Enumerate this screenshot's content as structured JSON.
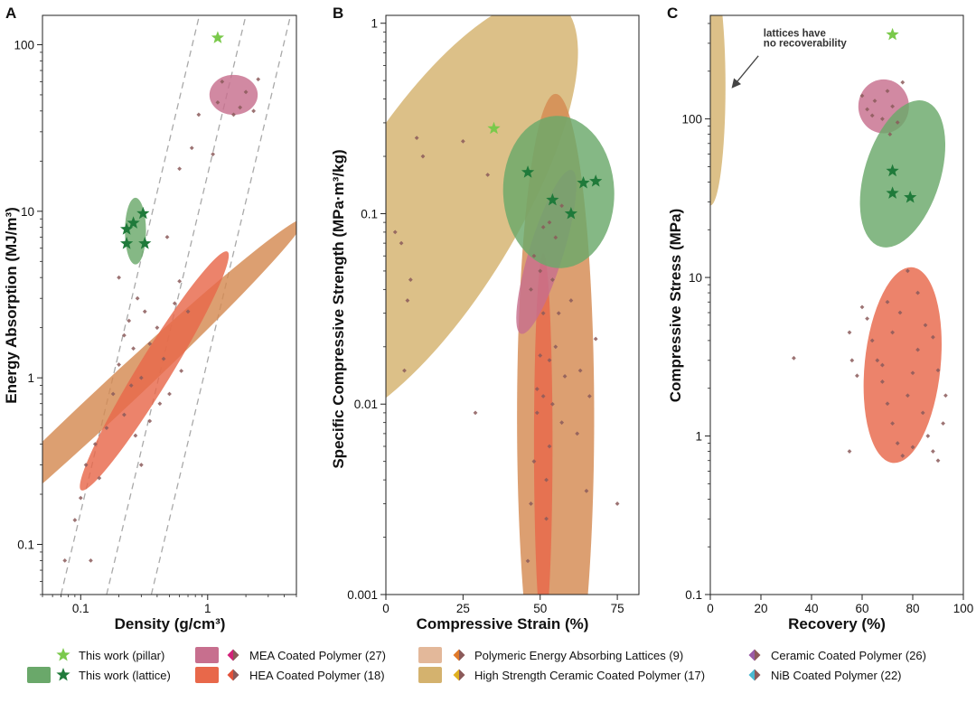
{
  "colors": {
    "pillar_star": "#7ac94b",
    "lattice_star": "#1f7a3a",
    "lattice_region": "#6aa86a",
    "mea_region": "#c76f8e",
    "hea_region": "#e8684a",
    "polymeric_region": "#d48a52",
    "hscc_region": "#d4b26e",
    "point": "#8b5a5a",
    "axis": "#222222",
    "guide": "#a9a9a9"
  },
  "legend": [
    {
      "key": "pillar",
      "label": "This work (pillar)",
      "swatch": "none",
      "marker": "star",
      "marker_color": "#7ac94b"
    },
    {
      "key": "lattice",
      "label": "This work (lattice)",
      "swatch": "#6aa86a",
      "marker": "star",
      "marker_color": "#1f7a3a"
    },
    {
      "key": "mea",
      "label": "MEA Coated Polymer (27)",
      "swatch": "#c76f8e",
      "marker": "diamond",
      "marker_color": "#d3207a",
      "marker_color2": "#8b5a5a"
    },
    {
      "key": "hea",
      "label": "HEA Coated Polymer (18)",
      "swatch": "#e8684a",
      "marker": "diamond",
      "marker_color": "#e2503a",
      "marker_color2": "#8b5a5a"
    },
    {
      "key": "pol",
      "label": "Polymeric Energy Absorbing Lattices (9)",
      "swatch": "#e3b89a",
      "marker": "diamond",
      "marker_color": "#e07a2a",
      "marker_color2": "#8b5a5a"
    },
    {
      "key": "hscc",
      "label": "High Strength Ceramic Coated Polymer (17)",
      "swatch": "#d4b26e",
      "marker": "diamond",
      "marker_color": "#e0b020",
      "marker_color2": "#8b5a5a"
    },
    {
      "key": "cer",
      "label": "Ceramic Coated Polymer (26)",
      "swatch": "none",
      "marker": "diamond",
      "marker_color": "#9a5aa6",
      "marker_color2": "#8b5a5a"
    },
    {
      "key": "nib",
      "label": "NiB Coated Polymer (22)",
      "swatch": "none",
      "marker": "diamond",
      "marker_color": "#4ab8d0",
      "marker_color2": "#8b5a5a"
    }
  ],
  "chart_data": [
    {
      "panel": "A",
      "type": "scatter",
      "xscale": "log",
      "yscale": "log",
      "xlabel": "Density (g/cm³)",
      "ylabel": "Energy Absorption (MJ/m³)",
      "xlim": [
        0.05,
        5
      ],
      "ylim": [
        0.05,
        150
      ],
      "xticks": [
        {
          "v": 0.1,
          "label": "0.1"
        },
        {
          "v": 1,
          "label": "1"
        }
      ],
      "yticks": [
        {
          "v": 0.1,
          "label": "0.1"
        },
        {
          "v": 1,
          "label": "1"
        },
        {
          "v": 10,
          "label": "10"
        },
        {
          "v": 100,
          "label": "100"
        }
      ],
      "guides": [
        {
          "from": [
            0.07,
            0.05
          ],
          "to": [
            0.86,
            150
          ]
        },
        {
          "from": [
            0.16,
            0.05
          ],
          "to": [
            2.0,
            150
          ]
        },
        {
          "from": [
            0.36,
            0.05
          ],
          "to": [
            4.5,
            150
          ]
        }
      ],
      "regions": [
        {
          "series": "Polymeric Energy Absorbing Lattices",
          "color": "#d48a52",
          "center": [
            0.175,
            0.75
          ],
          "rx": 0.13,
          "ry": 1.58,
          "tilt": 0.82
        },
        {
          "series": "HEA Coated Polymer",
          "color": "#e8684a",
          "center": [
            0.38,
            1.1
          ],
          "rx": 0.13,
          "ry": 0.84,
          "tilt": 0.55
        },
        {
          "series": "This work (lattice)",
          "color": "#6aa86a",
          "center": [
            0.27,
            7.6
          ],
          "rx": 0.083,
          "ry": 0.2,
          "tilt": 0
        },
        {
          "series": "MEA Coated Polymer",
          "color": "#c76f8e",
          "center": [
            1.6,
            50
          ],
          "rx": 0.19,
          "ry": 0.12,
          "tilt": 0
        }
      ],
      "points": [
        [
          0.075,
          0.08
        ],
        [
          0.09,
          0.14
        ],
        [
          0.1,
          0.19
        ],
        [
          0.12,
          0.08
        ],
        [
          0.11,
          0.3
        ],
        [
          0.14,
          0.25
        ],
        [
          0.13,
          0.4
        ],
        [
          0.16,
          0.5
        ],
        [
          0.18,
          0.8
        ],
        [
          0.2,
          1.2
        ],
        [
          0.22,
          1.8
        ],
        [
          0.24,
          2.2
        ],
        [
          0.26,
          1.5
        ],
        [
          0.28,
          3.0
        ],
        [
          0.3,
          1.0
        ],
        [
          0.22,
          0.6
        ],
        [
          0.25,
          0.9
        ],
        [
          0.32,
          2.5
        ],
        [
          0.35,
          1.6
        ],
        [
          0.4,
          2.0
        ],
        [
          0.45,
          1.3
        ],
        [
          0.5,
          0.8
        ],
        [
          0.55,
          2.8
        ],
        [
          0.6,
          3.8
        ],
        [
          0.7,
          2.5
        ],
        [
          0.27,
          0.45
        ],
        [
          0.3,
          0.3
        ],
        [
          0.35,
          0.55
        ],
        [
          0.42,
          0.7
        ],
        [
          0.2,
          4.0
        ],
        [
          0.62,
          1.1
        ],
        [
          0.48,
          7.0
        ],
        [
          0.6,
          18
        ],
        [
          0.75,
          24
        ],
        [
          0.85,
          38
        ],
        [
          1.3,
          60
        ],
        [
          1.6,
          38
        ],
        [
          2.0,
          52
        ],
        [
          2.5,
          62
        ],
        [
          1.8,
          42
        ],
        [
          1.1,
          22
        ],
        [
          1.2,
          45
        ],
        [
          2.3,
          40
        ]
      ],
      "pillars": [
        [
          1.2,
          110
        ]
      ],
      "lattices": [
        [
          0.23,
          6.4
        ],
        [
          0.23,
          7.8
        ],
        [
          0.26,
          8.5
        ],
        [
          0.31,
          9.7
        ],
        [
          0.32,
          6.4
        ]
      ]
    },
    {
      "panel": "B",
      "type": "scatter",
      "xscale": "linear",
      "yscale": "log",
      "xlabel": "Compressive Strain (%)",
      "ylabel": "Specific Compressive Strength (MPa·m³/kg)",
      "xlim": [
        0,
        82
      ],
      "ylim": [
        0.001,
        1.1
      ],
      "xticks": [
        {
          "v": 0,
          "label": "0"
        },
        {
          "v": 25,
          "label": "25"
        },
        {
          "v": 50,
          "label": "50"
        },
        {
          "v": 75,
          "label": "75"
        }
      ],
      "yticks": [
        {
          "v": 0.001,
          "label": "0.001"
        },
        {
          "v": 0.01,
          "label": "0.01"
        },
        {
          "v": 0.1,
          "label": "0.1"
        },
        {
          "v": 1,
          "label": "1"
        }
      ],
      "regions": [
        {
          "series": "High Strength Ceramic Coated Polymer",
          "color": "#d4b26e",
          "center": [
            14,
            0.1
          ],
          "rx": 28,
          "ry": 1.3,
          "tilt": 0.55
        },
        {
          "series": "Polymeric Energy Absorbing Lattices",
          "color": "#d48a52",
          "center": [
            55,
            0.0085
          ],
          "rx": 12.5,
          "ry": 1.7,
          "tilt": 0
        },
        {
          "series": "HEA Coated Polymer",
          "color": "#e8684a",
          "center": [
            51,
            0.0062
          ],
          "rx": 3.0,
          "ry": 1.0,
          "tilt": 0
        },
        {
          "series": "MEA Coated Polymer",
          "color": "#c76f8e",
          "center": [
            52,
            0.063
          ],
          "rx": 5.5,
          "ry": 0.45,
          "tilt": 0.3
        },
        {
          "series": "This work (lattice)",
          "color": "#6aa86a",
          "center": [
            56,
            0.13
          ],
          "rx": 18,
          "ry": 0.4,
          "tilt": -0.04
        }
      ],
      "points": [
        [
          3,
          0.08
        ],
        [
          5,
          0.07
        ],
        [
          7,
          0.035
        ],
        [
          8,
          0.045
        ],
        [
          10,
          0.25
        ],
        [
          12,
          0.2
        ],
        [
          6,
          0.015
        ],
        [
          25,
          0.24
        ],
        [
          33,
          0.16
        ],
        [
          29,
          0.009
        ],
        [
          46,
          0.0015
        ],
        [
          47,
          0.003
        ],
        [
          48,
          0.005
        ],
        [
          49,
          0.012
        ],
        [
          50,
          0.018
        ],
        [
          51,
          0.03
        ],
        [
          52,
          0.004
        ],
        [
          53,
          0.006
        ],
        [
          54,
          0.01
        ],
        [
          55,
          0.02
        ],
        [
          56,
          0.03
        ],
        [
          57,
          0.008
        ],
        [
          58,
          0.014
        ],
        [
          60,
          0.035
        ],
        [
          62,
          0.007
        ],
        [
          63,
          0.015
        ],
        [
          65,
          0.0035
        ],
        [
          66,
          0.011
        ],
        [
          68,
          0.022
        ],
        [
          75,
          0.003
        ],
        [
          52,
          0.0025
        ],
        [
          49,
          0.009
        ],
        [
          51,
          0.011
        ],
        [
          53,
          0.017
        ],
        [
          47,
          0.04
        ],
        [
          48,
          0.06
        ],
        [
          50,
          0.05
        ],
        [
          53,
          0.09
        ],
        [
          55,
          0.075
        ],
        [
          57,
          0.11
        ],
        [
          51,
          0.085
        ],
        [
          54,
          0.045
        ]
      ],
      "pillars": [
        [
          35,
          0.28
        ]
      ],
      "lattices": [
        [
          46,
          0.165
        ],
        [
          54,
          0.118
        ],
        [
          60,
          0.1
        ],
        [
          64,
          0.145
        ],
        [
          68,
          0.148
        ]
      ]
    },
    {
      "panel": "C",
      "type": "scatter",
      "xscale": "linear",
      "yscale": "log",
      "xlabel": "Recovery (%)",
      "ylabel": "Compressive Stress (MPa)",
      "xlim": [
        0,
        100
      ],
      "ylim": [
        0.1,
        450
      ],
      "xticks": [
        {
          "v": 0,
          "label": "0"
        },
        {
          "v": 20,
          "label": "20"
        },
        {
          "v": 40,
          "label": "40"
        },
        {
          "v": 60,
          "label": "60"
        },
        {
          "v": 80,
          "label": "80"
        },
        {
          "v": 100,
          "label": "100"
        }
      ],
      "yticks": [
        {
          "v": 0.1,
          "label": "0.1"
        },
        {
          "v": 1,
          "label": "1"
        },
        {
          "v": 10,
          "label": "10"
        },
        {
          "v": 100,
          "label": "100"
        }
      ],
      "annotation": {
        "lines": [
          "lattices have",
          "no recoverability"
        ],
        "text_at": [
          21,
          330
        ],
        "arrow_from": [
          19,
          250
        ],
        "arrow_to": [
          9,
          160
        ]
      },
      "regions": [
        {
          "series": "High Strength Ceramic Coated Polymer",
          "color": "#d4b26e",
          "center": [
            0,
            160
          ],
          "rx": 6,
          "ry": 0.75,
          "tilt": 0
        },
        {
          "series": "MEA Coated Polymer",
          "color": "#c76f8e",
          "center": [
            68.5,
            120
          ],
          "rx": 10,
          "ry": 0.17,
          "tilt": 0
        },
        {
          "series": "This work (lattice)",
          "color": "#6aa86a",
          "center": [
            76,
            45
          ],
          "rx": 15,
          "ry": 0.48,
          "tilt": 0.3
        },
        {
          "series": "HEA Coated Polymer",
          "color": "#e8684a",
          "center": [
            76,
            2.8
          ],
          "rx": 15,
          "ry": 0.62,
          "tilt": 0.1
        }
      ],
      "points": [
        [
          33,
          3.1
        ],
        [
          55,
          4.5
        ],
        [
          56,
          3.0
        ],
        [
          58,
          2.4
        ],
        [
          60,
          6.5
        ],
        [
          62,
          5.5
        ],
        [
          64,
          4.0
        ],
        [
          66,
          3.0
        ],
        [
          68,
          2.2
        ],
        [
          70,
          1.6
        ],
        [
          72,
          1.2
        ],
        [
          74,
          0.9
        ],
        [
          76,
          0.75
        ],
        [
          78,
          1.8
        ],
        [
          80,
          2.5
        ],
        [
          82,
          3.5
        ],
        [
          84,
          1.4
        ],
        [
          86,
          1.0
        ],
        [
          88,
          0.8
        ],
        [
          90,
          0.7
        ],
        [
          92,
          1.2
        ],
        [
          93,
          1.8
        ],
        [
          90,
          2.6
        ],
        [
          85,
          5.0
        ],
        [
          82,
          8.0
        ],
        [
          78,
          11
        ],
        [
          75,
          6.0
        ],
        [
          72,
          4.5
        ],
        [
          68,
          2.8
        ],
        [
          80,
          0.85
        ],
        [
          55,
          0.8
        ],
        [
          70,
          7.0
        ],
        [
          88,
          4.2
        ],
        [
          60,
          140
        ],
        [
          62,
          115
        ],
        [
          65,
          130
        ],
        [
          68,
          100
        ],
        [
          70,
          150
        ],
        [
          72,
          120
        ],
        [
          74,
          95
        ],
        [
          76,
          170
        ],
        [
          64,
          105
        ],
        [
          71,
          80
        ]
      ],
      "pillars": [
        [
          72,
          340
        ]
      ],
      "lattices": [
        [
          72,
          47
        ],
        [
          72,
          34
        ],
        [
          79,
          32
        ]
      ]
    }
  ]
}
